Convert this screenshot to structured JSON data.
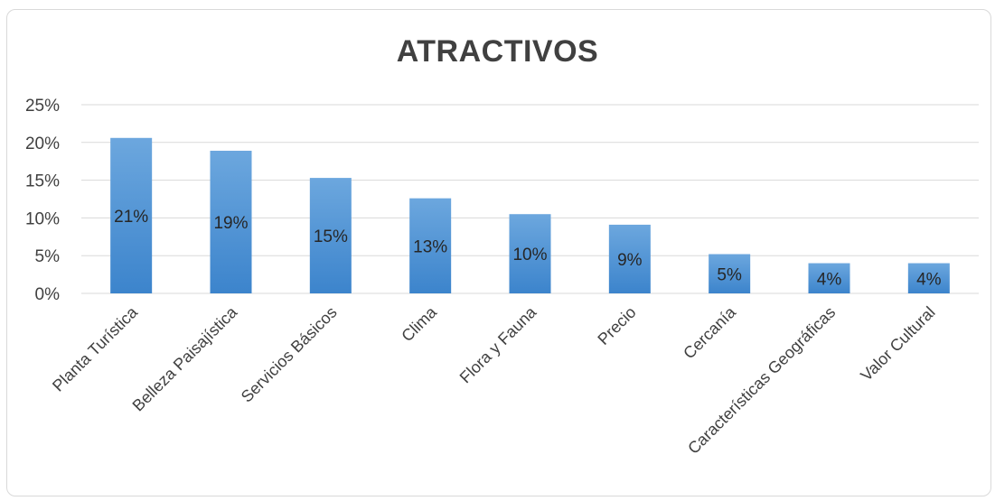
{
  "chart_data": {
    "type": "bar",
    "title": "ATRACTIVOS",
    "xlabel": "",
    "ylabel": "",
    "categories": [
      "Planta Turística",
      "Belleza Paisajística",
      "Servicios Básicos",
      "Clima",
      "Flora y Fauna",
      "Precio",
      "Cercanía",
      "Características Geográficas",
      "Valor Cultural"
    ],
    "values": [
      20.6,
      18.9,
      15.3,
      12.6,
      10.5,
      9.1,
      5.2,
      4.0,
      4.0
    ],
    "data_labels": [
      "21%",
      "19%",
      "15%",
      "13%",
      "10%",
      "9%",
      "5%",
      "4%",
      "4%"
    ],
    "y_ticks": [
      "0%",
      "5%",
      "10%",
      "15%",
      "20%",
      "25%"
    ],
    "ylim": [
      0,
      25
    ],
    "grid": true,
    "legend": "none",
    "colors": {
      "bar_top": "#6ca7de",
      "bar_bottom": "#3c84cc",
      "grid": "#d9d9d9",
      "text": "#404040"
    }
  }
}
